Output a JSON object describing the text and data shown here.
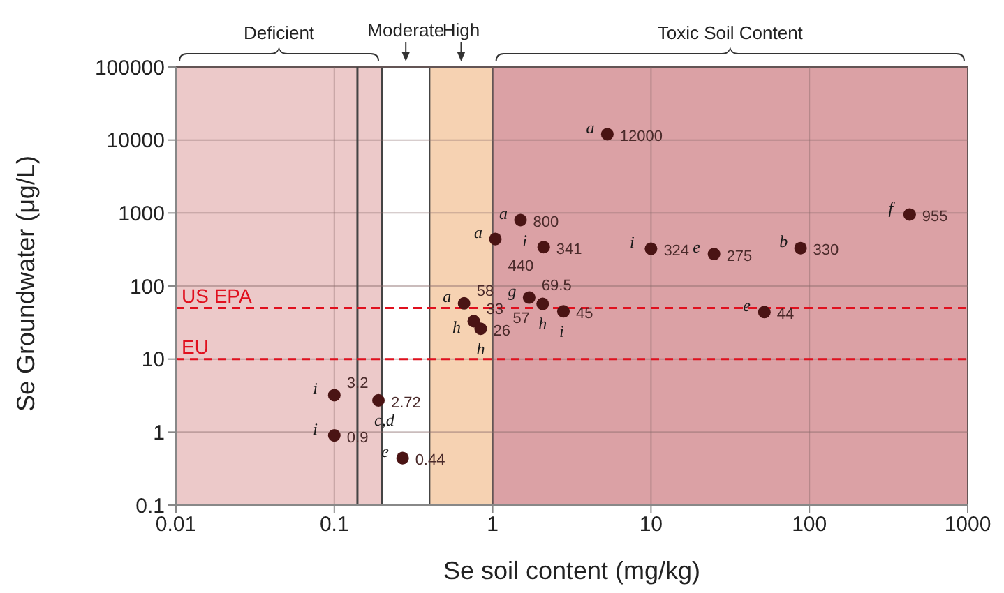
{
  "chart_data": {
    "type": "scatter",
    "xlabel": "Se soil content (mg/kg)",
    "ylabel": "Se Groundwater (μg/L)",
    "log": "xy",
    "xlim": [
      0.01,
      1000
    ],
    "xticks": [
      0.01,
      0.1,
      1,
      10,
      100,
      1000
    ],
    "ylim": [
      0.1,
      100000
    ],
    "yticks": [
      0.1,
      1,
      10,
      100,
      1000,
      10000,
      100000
    ],
    "grid": true,
    "marker": "circle",
    "data_labels": true,
    "series": [
      {
        "color": "#4a1414",
        "x": [
          5.3,
          1.5,
          1.04,
          2.1,
          10,
          25,
          88,
          430,
          52,
          1.7,
          2.07,
          2.8,
          0.66,
          0.76,
          0.84,
          0.1,
          0.1,
          0.19,
          0.27
        ],
        "values": [
          12000,
          800,
          440,
          341,
          324,
          275,
          330,
          955,
          44,
          69.5,
          57,
          45,
          58,
          33,
          26,
          3.2,
          0.9,
          2.72,
          0.44
        ]
      }
    ],
    "bands": [
      {
        "axis": "x",
        "from": 0.01,
        "to": 0.2,
        "label": "Deficient",
        "color": "#ecc9c9"
      },
      {
        "axis": "x",
        "from": 0.2,
        "to": 0.4,
        "label": "Moderate",
        "color": "#ffffff"
      },
      {
        "axis": "x",
        "from": 0.4,
        "to": 1,
        "label": "High",
        "color": "#f6d2b2"
      },
      {
        "axis": "x",
        "from": 1,
        "to": 1000,
        "label": "Toxic Soil Content",
        "color": "#dba1a5"
      }
    ],
    "ref_lines": [
      {
        "axis": "x",
        "value": 0.14,
        "color": "#444444",
        "line_style": "solid"
      },
      {
        "axis": "y",
        "value": 50,
        "label": "US EPA",
        "color": "#e0101e",
        "line_style": "dashed"
      },
      {
        "axis": "y",
        "value": 10,
        "label": "EU",
        "color": "#e0101e",
        "line_style": "dashed"
      }
    ],
    "annotations": [
      {
        "text": "a",
        "x": 5.3,
        "y": 12000
      },
      {
        "text": "a",
        "x": 1.5,
        "y": 800
      },
      {
        "text": "a",
        "x": 1.04,
        "y": 440
      },
      {
        "text": "i",
        "x": 2.1,
        "y": 341
      },
      {
        "text": "i",
        "x": 10,
        "y": 324
      },
      {
        "text": "e",
        "x": 25,
        "y": 275
      },
      {
        "text": "b",
        "x": 88,
        "y": 330
      },
      {
        "text": "f",
        "x": 430,
        "y": 955
      },
      {
        "text": "e",
        "x": 52,
        "y": 44
      },
      {
        "text": "g",
        "x": 1.7,
        "y": 69.5
      },
      {
        "text": "h",
        "x": 2.07,
        "y": 57
      },
      {
        "text": "i",
        "x": 2.8,
        "y": 45
      },
      {
        "text": "a",
        "x": 0.66,
        "y": 58
      },
      {
        "text": "h",
        "x": 0.76,
        "y": 33
      },
      {
        "text": "h",
        "x": 0.84,
        "y": 26
      },
      {
        "text": "i",
        "x": 0.1,
        "y": 3.2
      },
      {
        "text": "i",
        "x": 0.1,
        "y": 0.9
      },
      {
        "text": "c,d",
        "x": 0.19,
        "y": 2.72
      },
      {
        "text": "e",
        "x": 0.27,
        "y": 0.44
      }
    ]
  }
}
